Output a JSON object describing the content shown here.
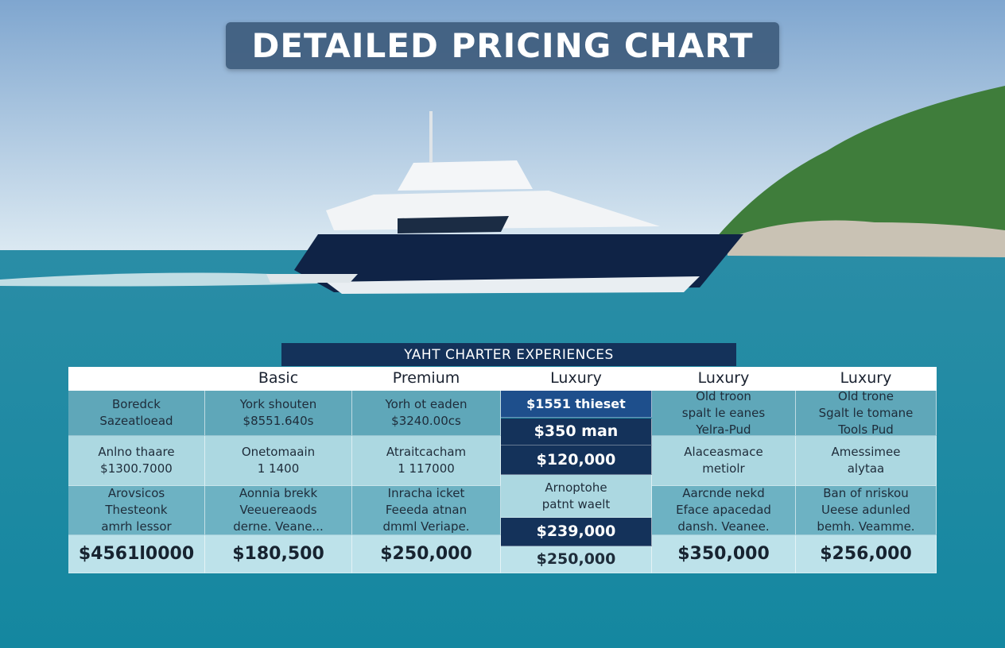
{
  "header": {
    "title": "DETAILED PRICING CHART"
  },
  "table": {
    "caption": "YAHT CHARTER EXPERIENCES",
    "columns": [
      {
        "header": null,
        "cells": [
          [
            "Boredck",
            "Sazeatloead"
          ],
          [
            "Anlno thaare",
            "$1300.7000"
          ],
          [
            "Arovsicos",
            "Thesteonk",
            "amrh lessor"
          ],
          [
            "$4561l0000"
          ]
        ]
      },
      {
        "header": "Basic",
        "cells": [
          [
            "York shouten",
            "$8551.640s"
          ],
          [
            "Onetomaain",
            "1 1400"
          ],
          [
            "Aonnia brekk",
            "Veeuereaods",
            "derne. Veane..."
          ],
          [
            "$180,500"
          ]
        ]
      },
      {
        "header": "Premium",
        "cells": [
          [
            "Yorh ot eaden",
            "$3240.00cs"
          ],
          [
            "Atraitcacham",
            "1 117000"
          ],
          [
            "Inracha icket",
            "Feeeda atnan",
            "dmml Veriape."
          ],
          [
            "$250,000"
          ]
        ]
      },
      {
        "header": "Luxury",
        "cells": [
          [
            "$1551 thieset"
          ],
          [
            "$350 man"
          ],
          [
            "$120,000"
          ],
          [
            "Arnoptohe",
            "patnt waelt"
          ],
          [
            "$239,000"
          ],
          [
            "$250,000"
          ]
        ]
      },
      {
        "header": "Luxury",
        "cells": [
          [
            "Old troon",
            "spalt le eanes",
            "Yelra-Pud"
          ],
          [
            "Alaceasmace",
            "metiolr"
          ],
          [
            "Aarcnde nekd",
            "Eface apacedad",
            "dansh. Veanee."
          ],
          [
            "$350,000"
          ]
        ]
      },
      {
        "header": "Luxury",
        "cells": [
          [
            "Old trone",
            "Sgalt le tomane",
            "Tools Pud"
          ],
          [
            "Amessimee",
            "alytaa"
          ],
          [
            "Ban of nriskou",
            "Ueese adunled",
            "bemh. Veamme."
          ],
          [
            "$256,000"
          ]
        ]
      }
    ]
  }
}
